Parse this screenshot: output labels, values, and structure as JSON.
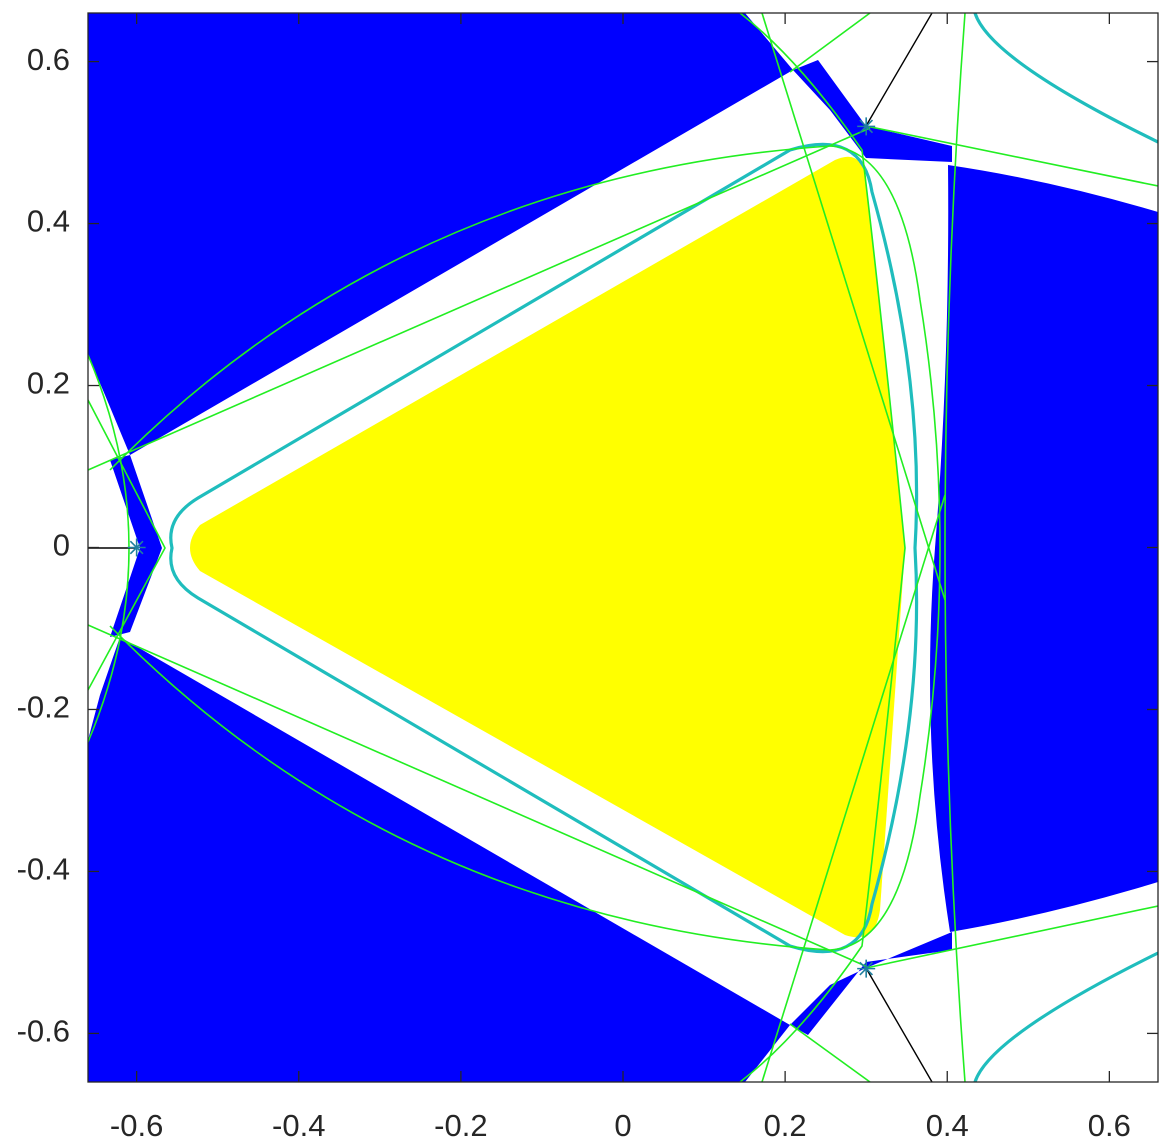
{
  "chart_data": {
    "type": "scatter",
    "x": [
      -0.6,
      0.3,
      0.3
    ],
    "values": [
      0,
      0.52,
      -0.52
    ],
    "color": "#1f7f9f",
    "xlim": [
      -0.66,
      0.66
    ],
    "ylim": [
      -0.66,
      0.66
    ],
    "xticks": [
      -0.6,
      -0.4,
      -0.2,
      0,
      0.2,
      0.4,
      0.6
    ],
    "yticks": [
      -0.6,
      -0.4,
      -0.2,
      0,
      0.2,
      0.4,
      0.6
    ]
  }
}
